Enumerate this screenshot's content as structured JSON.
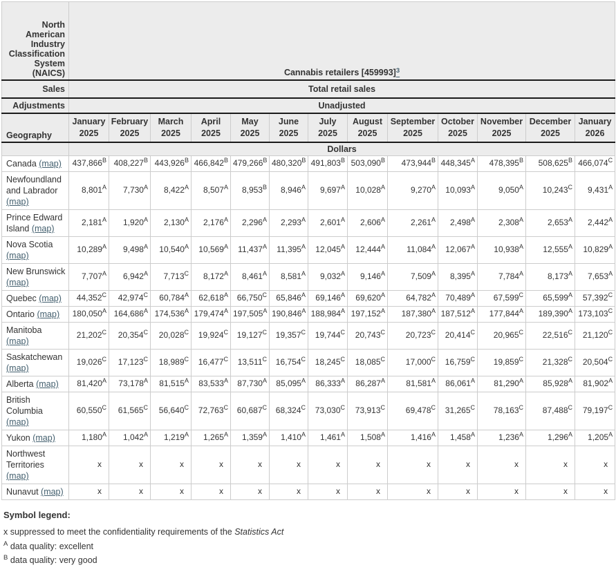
{
  "colors": {
    "header_background": "#ececec",
    "dark_border": "#1a1a1a",
    "light_border": "#cccccc",
    "text": "#333333",
    "link": "#44606f"
  },
  "header": {
    "naics_label": "North American Industry Classification System (NAICS)",
    "naics_value": "Cannabis retailers [459993]",
    "naics_footnote": "3",
    "sales_label": "Sales",
    "sales_value": "Total retail sales",
    "adjustments_label": "Adjustments",
    "adjustments_value": "Unadjusted",
    "geography_label": "Geography",
    "unit_label": "Dollars",
    "months": [
      [
        "January",
        "2025"
      ],
      [
        "February",
        "2025"
      ],
      [
        "March",
        "2025"
      ],
      [
        "April",
        "2025"
      ],
      [
        "May",
        "2025"
      ],
      [
        "June",
        "2025"
      ],
      [
        "July",
        "2025"
      ],
      [
        "August",
        "2025"
      ],
      [
        "September",
        "2025"
      ],
      [
        "October",
        "2025"
      ],
      [
        "November",
        "2025"
      ],
      [
        "December",
        "2025"
      ],
      [
        "January",
        "2026"
      ]
    ]
  },
  "map_link_label": "(map)",
  "rows": [
    {
      "geo": "Canada",
      "values": [
        [
          "437,866",
          "B"
        ],
        [
          "408,227",
          "B"
        ],
        [
          "443,926",
          "B"
        ],
        [
          "466,842",
          "B"
        ],
        [
          "479,266",
          "B"
        ],
        [
          "480,320",
          "B"
        ],
        [
          "491,803",
          "B"
        ],
        [
          "503,090",
          "B"
        ],
        [
          "473,944",
          "B"
        ],
        [
          "448,345",
          "A"
        ],
        [
          "478,395",
          "B"
        ],
        [
          "508,625",
          "B"
        ],
        [
          "466,074",
          "C"
        ]
      ]
    },
    {
      "geo": "Newfoundland and Labrador",
      "values": [
        [
          "8,801",
          "A"
        ],
        [
          "7,730",
          "A"
        ],
        [
          "8,422",
          "A"
        ],
        [
          "8,507",
          "A"
        ],
        [
          "8,953",
          "B"
        ],
        [
          "8,946",
          "A"
        ],
        [
          "9,697",
          "A"
        ],
        [
          "10,028",
          "A"
        ],
        [
          "9,270",
          "A"
        ],
        [
          "10,093",
          "A"
        ],
        [
          "9,050",
          "A"
        ],
        [
          "10,243",
          "C"
        ],
        [
          "9,431",
          "A"
        ]
      ]
    },
    {
      "geo": "Prince Edward Island",
      "values": [
        [
          "2,181",
          "A"
        ],
        [
          "1,920",
          "A"
        ],
        [
          "2,130",
          "A"
        ],
        [
          "2,176",
          "A"
        ],
        [
          "2,296",
          "A"
        ],
        [
          "2,293",
          "A"
        ],
        [
          "2,601",
          "A"
        ],
        [
          "2,606",
          "A"
        ],
        [
          "2,261",
          "A"
        ],
        [
          "2,498",
          "A"
        ],
        [
          "2,308",
          "A"
        ],
        [
          "2,653",
          "A"
        ],
        [
          "2,442",
          "A"
        ]
      ]
    },
    {
      "geo": "Nova Scotia",
      "values": [
        [
          "10,289",
          "A"
        ],
        [
          "9,498",
          "A"
        ],
        [
          "10,540",
          "A"
        ],
        [
          "10,569",
          "A"
        ],
        [
          "11,437",
          "A"
        ],
        [
          "11,395",
          "A"
        ],
        [
          "12,045",
          "A"
        ],
        [
          "12,444",
          "A"
        ],
        [
          "11,084",
          "A"
        ],
        [
          "12,067",
          "A"
        ],
        [
          "10,938",
          "A"
        ],
        [
          "12,555",
          "A"
        ],
        [
          "10,829",
          "A"
        ]
      ]
    },
    {
      "geo": "New Brunswick",
      "values": [
        [
          "7,707",
          "A"
        ],
        [
          "6,942",
          "A"
        ],
        [
          "7,713",
          "C"
        ],
        [
          "8,172",
          "A"
        ],
        [
          "8,461",
          "A"
        ],
        [
          "8,581",
          "A"
        ],
        [
          "9,032",
          "A"
        ],
        [
          "9,146",
          "A"
        ],
        [
          "7,509",
          "A"
        ],
        [
          "8,395",
          "A"
        ],
        [
          "7,784",
          "A"
        ],
        [
          "8,173",
          "A"
        ],
        [
          "7,653",
          "A"
        ]
      ]
    },
    {
      "geo": "Quebec",
      "values": [
        [
          "44,352",
          "C"
        ],
        [
          "42,974",
          "C"
        ],
        [
          "60,784",
          "A"
        ],
        [
          "62,618",
          "A"
        ],
        [
          "66,750",
          "C"
        ],
        [
          "65,846",
          "A"
        ],
        [
          "69,146",
          "A"
        ],
        [
          "69,620",
          "A"
        ],
        [
          "64,782",
          "A"
        ],
        [
          "70,489",
          "A"
        ],
        [
          "67,599",
          "C"
        ],
        [
          "65,599",
          "A"
        ],
        [
          "57,392",
          "C"
        ]
      ]
    },
    {
      "geo": "Ontario",
      "values": [
        [
          "180,050",
          "A"
        ],
        [
          "164,686",
          "A"
        ],
        [
          "174,536",
          "A"
        ],
        [
          "179,474",
          "A"
        ],
        [
          "197,505",
          "A"
        ],
        [
          "190,846",
          "A"
        ],
        [
          "188,984",
          "A"
        ],
        [
          "197,152",
          "A"
        ],
        [
          "187,380",
          "A"
        ],
        [
          "187,512",
          "A"
        ],
        [
          "177,844",
          "A"
        ],
        [
          "189,390",
          "A"
        ],
        [
          "173,103",
          "C"
        ]
      ]
    },
    {
      "geo": "Manitoba",
      "values": [
        [
          "21,202",
          "C"
        ],
        [
          "20,354",
          "C"
        ],
        [
          "20,028",
          "C"
        ],
        [
          "19,924",
          "C"
        ],
        [
          "19,127",
          "C"
        ],
        [
          "19,357",
          "C"
        ],
        [
          "19,744",
          "C"
        ],
        [
          "20,743",
          "C"
        ],
        [
          "20,723",
          "C"
        ],
        [
          "20,414",
          "C"
        ],
        [
          "20,965",
          "C"
        ],
        [
          "22,516",
          "C"
        ],
        [
          "21,120",
          "C"
        ]
      ]
    },
    {
      "geo": "Saskatchewan",
      "values": [
        [
          "19,026",
          "C"
        ],
        [
          "17,123",
          "C"
        ],
        [
          "18,989",
          "C"
        ],
        [
          "16,477",
          "C"
        ],
        [
          "13,511",
          "C"
        ],
        [
          "16,754",
          "C"
        ],
        [
          "18,245",
          "C"
        ],
        [
          "18,085",
          "C"
        ],
        [
          "17,000",
          "C"
        ],
        [
          "16,759",
          "C"
        ],
        [
          "19,859",
          "C"
        ],
        [
          "21,328",
          "C"
        ],
        [
          "20,504",
          "C"
        ]
      ]
    },
    {
      "geo": "Alberta",
      "values": [
        [
          "81,420",
          "A"
        ],
        [
          "73,178",
          "A"
        ],
        [
          "81,515",
          "A"
        ],
        [
          "83,533",
          "A"
        ],
        [
          "87,730",
          "A"
        ],
        [
          "85,095",
          "A"
        ],
        [
          "86,333",
          "A"
        ],
        [
          "86,287",
          "A"
        ],
        [
          "81,581",
          "A"
        ],
        [
          "86,061",
          "A"
        ],
        [
          "81,290",
          "A"
        ],
        [
          "85,928",
          "A"
        ],
        [
          "81,902",
          "A"
        ]
      ]
    },
    {
      "geo": "British Columbia",
      "values": [
        [
          "60,550",
          "C"
        ],
        [
          "61,565",
          "C"
        ],
        [
          "56,640",
          "C"
        ],
        [
          "72,763",
          "C"
        ],
        [
          "60,687",
          "C"
        ],
        [
          "68,324",
          "C"
        ],
        [
          "73,030",
          "C"
        ],
        [
          "73,913",
          "C"
        ],
        [
          "69,478",
          "C"
        ],
        [
          "31,265",
          "C"
        ],
        [
          "78,163",
          "C"
        ],
        [
          "87,488",
          "C"
        ],
        [
          "79,197",
          "C"
        ]
      ]
    },
    {
      "geo": "Yukon",
      "values": [
        [
          "1,180",
          "A"
        ],
        [
          "1,042",
          "A"
        ],
        [
          "1,219",
          "A"
        ],
        [
          "1,265",
          "A"
        ],
        [
          "1,359",
          "A"
        ],
        [
          "1,410",
          "A"
        ],
        [
          "1,461",
          "A"
        ],
        [
          "1,508",
          "A"
        ],
        [
          "1,416",
          "A"
        ],
        [
          "1,458",
          "A"
        ],
        [
          "1,236",
          "A"
        ],
        [
          "1,296",
          "A"
        ],
        [
          "1,205",
          "A"
        ]
      ]
    },
    {
      "geo": "Northwest Territories",
      "values": [
        [
          "x",
          ""
        ],
        [
          "x",
          ""
        ],
        [
          "x",
          ""
        ],
        [
          "x",
          ""
        ],
        [
          "x",
          ""
        ],
        [
          "x",
          ""
        ],
        [
          "x",
          ""
        ],
        [
          "x",
          ""
        ],
        [
          "x",
          ""
        ],
        [
          "x",
          ""
        ],
        [
          "x",
          ""
        ],
        [
          "x",
          ""
        ],
        [
          "x",
          ""
        ]
      ]
    },
    {
      "geo": "Nunavut",
      "values": [
        [
          "x",
          ""
        ],
        [
          "x",
          ""
        ],
        [
          "x",
          ""
        ],
        [
          "x",
          ""
        ],
        [
          "x",
          ""
        ],
        [
          "x",
          ""
        ],
        [
          "x",
          ""
        ],
        [
          "x",
          ""
        ],
        [
          "x",
          ""
        ],
        [
          "x",
          ""
        ],
        [
          "x",
          ""
        ],
        [
          "x",
          ""
        ],
        [
          "x",
          ""
        ]
      ]
    }
  ],
  "legend": {
    "title": "Symbol legend:",
    "x_prefix": "x suppressed to meet the confidentiality requirements of the ",
    "x_italic": "Statistics Act",
    "a_sup": "A",
    "a_text": " data quality: excellent",
    "b_sup": "B",
    "b_text": " data quality: very good"
  }
}
